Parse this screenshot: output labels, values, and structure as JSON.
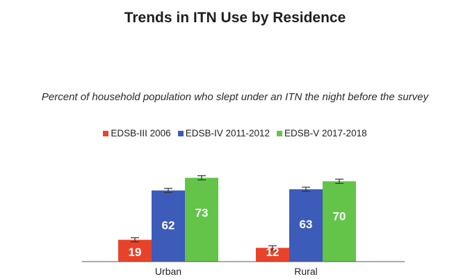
{
  "title": "Trends in ITN Use by Residence",
  "subtitle": "Percent of household population who slept under an ITN the night before the survey",
  "chart_data": {
    "type": "bar",
    "title": "Trends in ITN Use by Residence",
    "subtitle": "Percent of household population who slept under an ITN the night before the survey",
    "categories": [
      "Urban",
      "Rural"
    ],
    "series": [
      {
        "name": "EDSB-III 2006",
        "color": "#e8432a",
        "values": [
          19,
          12
        ]
      },
      {
        "name": "EDSB-IV 2011-2012",
        "color": "#3d5bb8",
        "values": [
          62,
          63
        ]
      },
      {
        "name": "EDSB-V 2017-2018",
        "color": "#63c449",
        "values": [
          73,
          70
        ]
      }
    ],
    "error_bars": true,
    "xlabel": "",
    "ylabel": "",
    "ylim": [
      0,
      100
    ],
    "grid": false,
    "legend_position": "top-center"
  }
}
